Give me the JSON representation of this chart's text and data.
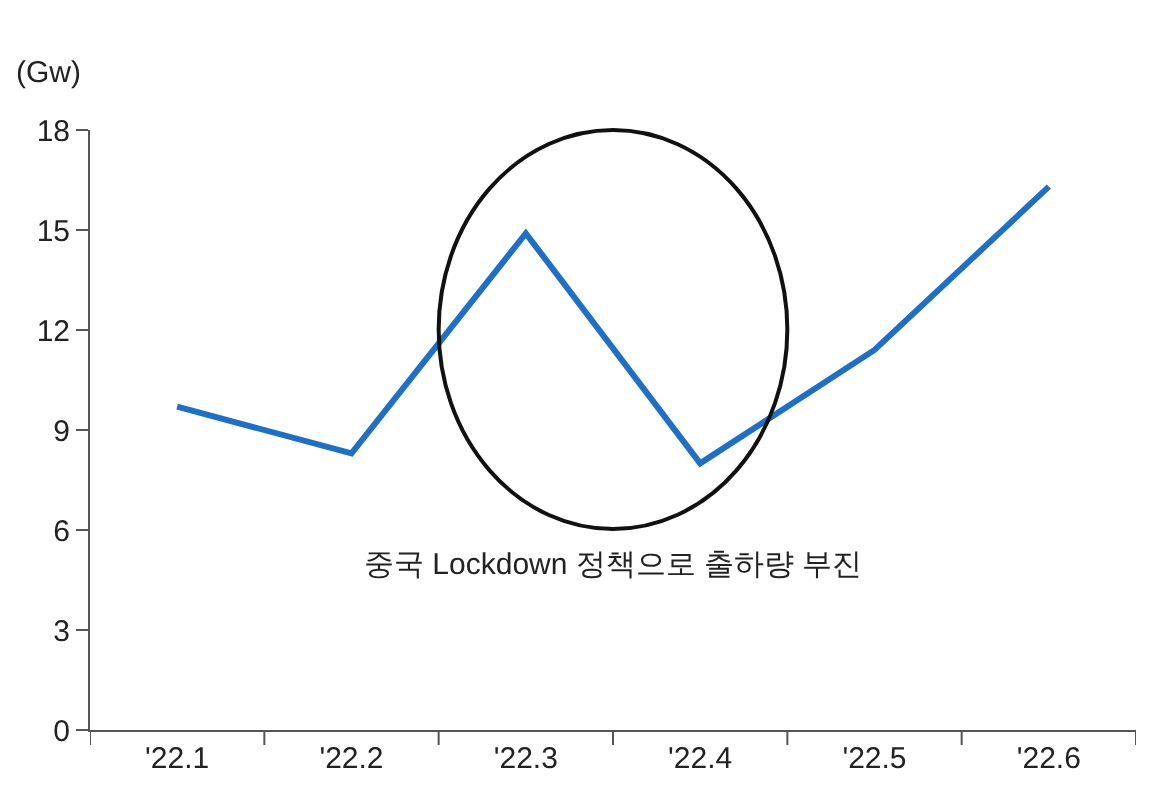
{
  "chart_data": {
    "type": "line",
    "ylabel": "(Gw)",
    "categories": [
      "'22.1",
      "'22.2",
      "'22.3",
      "'22.4",
      "'22.5",
      "'22.6"
    ],
    "series": [
      {
        "color": "#1f6fc5",
        "values": [
          9.7,
          8.3,
          14.9,
          8.0,
          11.4,
          16.3
        ]
      }
    ],
    "ylim": [
      0,
      18
    ],
    "yticks": [
      0,
      3,
      6,
      9,
      12,
      15,
      18
    ],
    "legend": false,
    "marker": "none",
    "line_style": "solid",
    "annotations": [
      "중국 Lockdown 정책으로 출하량 부진"
    ]
  }
}
